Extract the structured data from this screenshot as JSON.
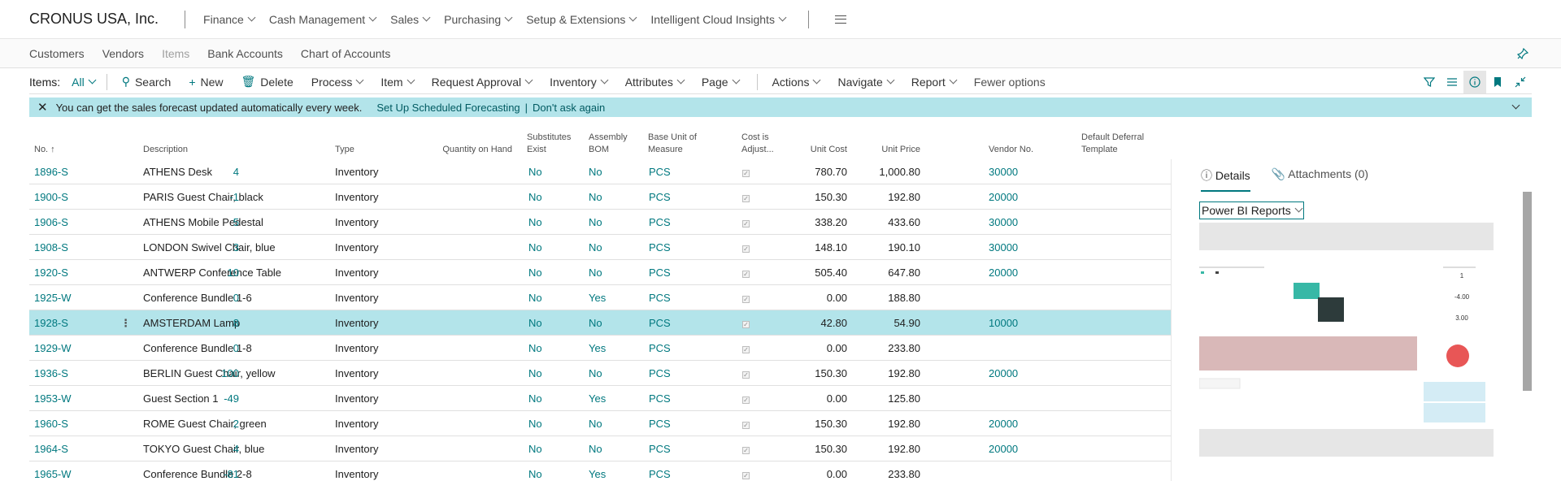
{
  "app": {
    "company": "CRONUS USA, Inc.",
    "menu": [
      "Finance",
      "Cash Management",
      "Sales",
      "Purchasing",
      "Setup & Extensions",
      "Intelligent Cloud Insights"
    ]
  },
  "subnav": [
    "Customers",
    "Vendors",
    "Items",
    "Bank Accounts",
    "Chart of Accounts"
  ],
  "actionbar": {
    "label": "Items:",
    "filter": "All",
    "search": "Search",
    "new": "New",
    "delete": "Delete",
    "menus": [
      "Process",
      "Item",
      "Request Approval",
      "Inventory",
      "Attributes",
      "Page"
    ],
    "menus2": [
      "Actions",
      "Navigate",
      "Report"
    ],
    "fewer": "Fewer options"
  },
  "banner": {
    "text": "You can get the sales forecast updated automatically every week.",
    "link1": "Set Up Scheduled Forecasting",
    "link2": "Don't ask again"
  },
  "table": {
    "headers": {
      "no": "No. ↑",
      "desc": "Description",
      "type": "Type",
      "qty": "Quantity on Hand",
      "sub1": "Substitutes",
      "sub2": "Exist",
      "asm1": "Assembly",
      "asm2": "BOM",
      "uom1": "Base Unit of",
      "uom2": "Measure",
      "cost1": "Cost is",
      "cost2": "Adjust...",
      "ucost": "Unit Cost",
      "uprice": "Unit Price",
      "vend": "Vendor No.",
      "def1": "Default Deferral",
      "def2": "Template"
    },
    "rows": [
      {
        "no": "1896-S",
        "desc": "ATHENS Desk",
        "type": "Inventory",
        "qty": "4",
        "sub": "No",
        "asm": "No",
        "uom": "PCS",
        "ucost": "780.70",
        "uprice": "1,000.80",
        "vend": "30000"
      },
      {
        "no": "1900-S",
        "desc": "PARIS Guest Chair, black",
        "type": "Inventory",
        "qty": "-1",
        "sub": "No",
        "asm": "No",
        "uom": "PCS",
        "ucost": "150.30",
        "uprice": "192.80",
        "vend": "20000"
      },
      {
        "no": "1906-S",
        "desc": "ATHENS Mobile Pedestal",
        "type": "Inventory",
        "qty": "5",
        "sub": "No",
        "asm": "No",
        "uom": "PCS",
        "ucost": "338.20",
        "uprice": "433.60",
        "vend": "30000"
      },
      {
        "no": "1908-S",
        "desc": "LONDON Swivel Chair, blue",
        "type": "Inventory",
        "qty": "3",
        "sub": "No",
        "asm": "No",
        "uom": "PCS",
        "ucost": "148.10",
        "uprice": "190.10",
        "vend": "30000"
      },
      {
        "no": "1920-S",
        "desc": "ANTWERP Conference Table",
        "type": "Inventory",
        "qty": "10",
        "sub": "No",
        "asm": "No",
        "uom": "PCS",
        "ucost": "505.40",
        "uprice": "647.80",
        "vend": "20000"
      },
      {
        "no": "1925-W",
        "desc": "Conference Bundle 1-6",
        "type": "Inventory",
        "qty": "0",
        "sub": "No",
        "asm": "Yes",
        "uom": "PCS",
        "ucost": "0.00",
        "uprice": "188.80",
        "vend": ""
      },
      {
        "no": "1928-S",
        "desc": "AMSTERDAM Lamp",
        "type": "Inventory",
        "qty": "8",
        "sub": "No",
        "asm": "No",
        "uom": "PCS",
        "ucost": "42.80",
        "uprice": "54.90",
        "vend": "10000"
      },
      {
        "no": "1929-W",
        "desc": "Conference Bundle 1-8",
        "type": "Inventory",
        "qty": "0",
        "sub": "No",
        "asm": "Yes",
        "uom": "PCS",
        "ucost": "0.00",
        "uprice": "233.80",
        "vend": ""
      },
      {
        "no": "1936-S",
        "desc": "BERLIN Guest Chair, yellow",
        "type": "Inventory",
        "qty": "100",
        "sub": "No",
        "asm": "No",
        "uom": "PCS",
        "ucost": "150.30",
        "uprice": "192.80",
        "vend": "20000"
      },
      {
        "no": "1953-W",
        "desc": "Guest Section 1",
        "type": "Inventory",
        "qty": "-49",
        "sub": "No",
        "asm": "Yes",
        "uom": "PCS",
        "ucost": "0.00",
        "uprice": "125.80",
        "vend": ""
      },
      {
        "no": "1960-S",
        "desc": "ROME Guest Chair, green",
        "type": "Inventory",
        "qty": "2",
        "sub": "No",
        "asm": "No",
        "uom": "PCS",
        "ucost": "150.30",
        "uprice": "192.80",
        "vend": "20000"
      },
      {
        "no": "1964-S",
        "desc": "TOKYO Guest Chair, blue",
        "type": "Inventory",
        "qty": "4",
        "sub": "No",
        "asm": "No",
        "uom": "PCS",
        "ucost": "150.30",
        "uprice": "192.80",
        "vend": "20000"
      },
      {
        "no": "1965-W",
        "desc": "Conference Bundle 2-8",
        "type": "Inventory",
        "qty": "-81",
        "sub": "No",
        "asm": "Yes",
        "uom": "PCS",
        "ucost": "0.00",
        "uprice": "233.80",
        "vend": ""
      }
    ],
    "selected_row": 6
  },
  "factbox": {
    "tab_details": "Details",
    "tab_attachments": "Attachments (0)",
    "pbi_select": "Power BI Reports",
    "report_values": [
      "1",
      "-4.00",
      "3.00"
    ]
  },
  "colors": {
    "accent": "#00787f",
    "banner": "#b3e4ea"
  }
}
